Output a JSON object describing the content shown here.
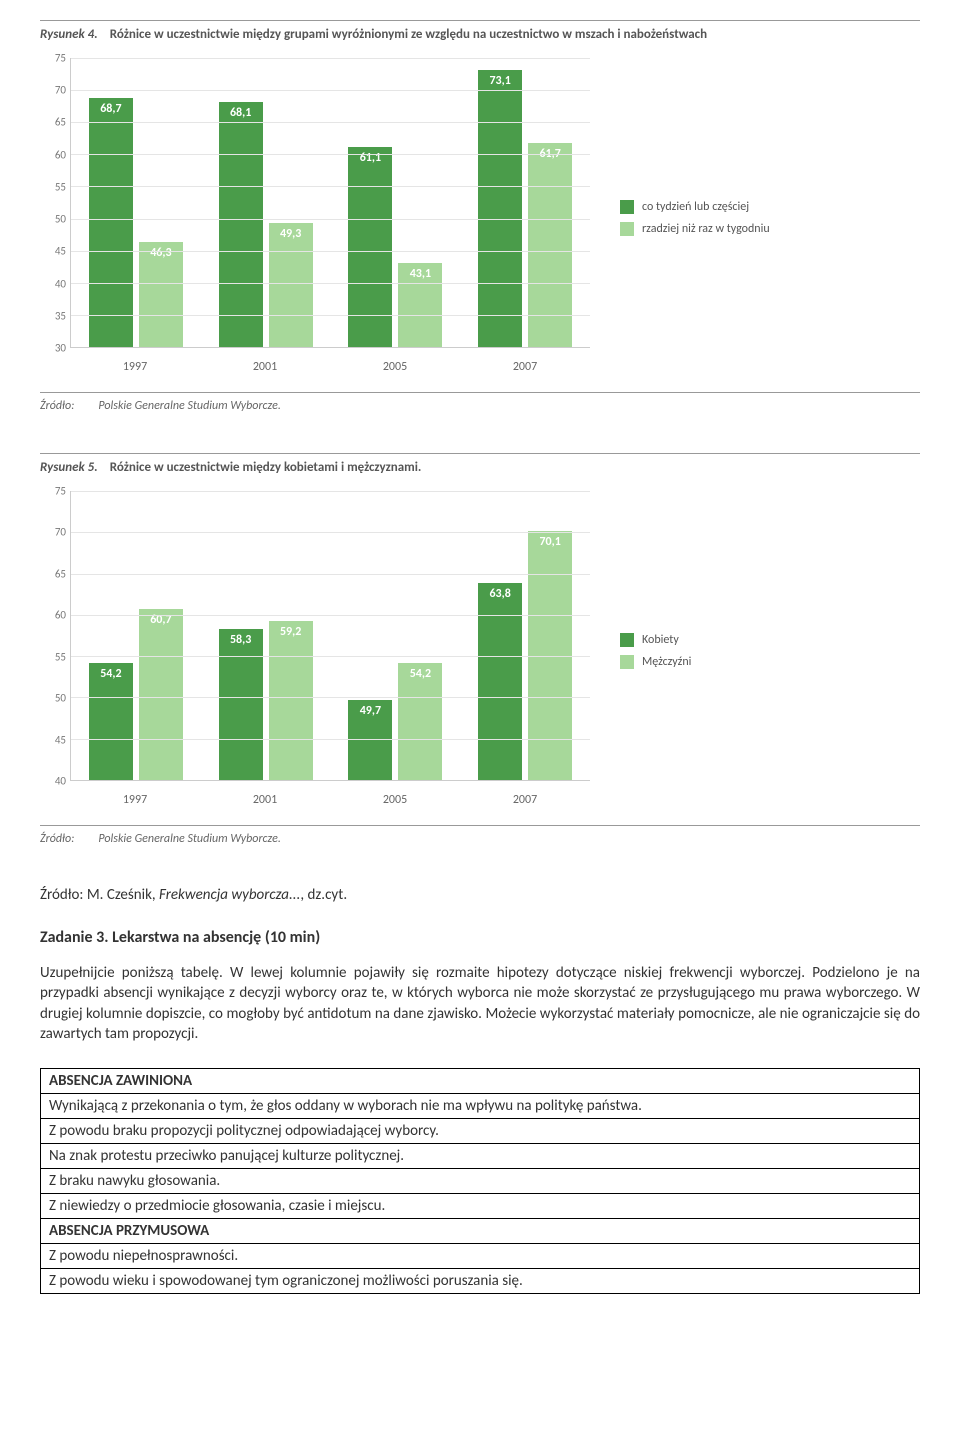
{
  "colors": {
    "dark_green": "#4a9c4a",
    "light_green": "#a7d89a",
    "grid": "#e5e5e5",
    "axis": "#cccccc"
  },
  "chart1": {
    "fig_label": "Rysunek 4.",
    "title": "Różnice w uczestnictwie między grupami wyróżnionymi ze względu na uczestnictwo w mszach i nabożeństwach",
    "y_min": 30,
    "y_max": 75,
    "y_step": 5,
    "categories": [
      "1997",
      "2001",
      "2005",
      "2007"
    ],
    "series": [
      {
        "name": "co tydzień lub częściej",
        "color_key": "dark_green",
        "values": [
          "68,7",
          "68,1",
          "61,1",
          "73,1"
        ],
        "num": [
          68.7,
          68.1,
          61.1,
          73.1
        ]
      },
      {
        "name": "rzadziej niż raz w tygodniu",
        "color_key": "light_green",
        "values": [
          "46,3",
          "49,3",
          "43,1",
          "61,7"
        ],
        "num": [
          46.3,
          49.3,
          43.1,
          61.7
        ]
      }
    ],
    "source_label": "Źródło:",
    "source_text": "Polskie Generalne Studium Wyborcze."
  },
  "chart2": {
    "fig_label": "Rysunek 5.",
    "title": "Różnice w uczestnictwie między kobietami i mężczyznami.",
    "y_min": 40,
    "y_max": 75,
    "y_step": 5,
    "categories": [
      "1997",
      "2001",
      "2005",
      "2007"
    ],
    "series": [
      {
        "name": "Kobiety",
        "color_key": "dark_green",
        "values": [
          "54,2",
          "58,3",
          "49,7",
          "63,8"
        ],
        "num": [
          54.2,
          58.3,
          49.7,
          63.8
        ]
      },
      {
        "name": "Mężczyźni",
        "color_key": "light_green",
        "values": [
          "60,7",
          "59,2",
          "54,2",
          "70,1"
        ],
        "num": [
          60.7,
          59.2,
          54.2,
          70.1
        ]
      }
    ],
    "source_label": "Źródło:",
    "source_text": "Polskie Generalne Studium Wyborcze."
  },
  "citation": {
    "prefix": "Źródło: M. Cześnik, ",
    "work": "Frekwencja wyborcza...",
    "suffix": ", dz.cyt."
  },
  "task": {
    "heading": "Zadanie 3. Lekarstwa na absencję (10 min)",
    "body": "Uzupełnijcie poniższą tabelę. W lewej kolumnie pojawiły się rozmaite hipotezy dotyczące niskiej frekwencji wyborczej. Podzielono je na przypadki absencji wynikające z decyzji wyborcy oraz te, w których wyborca nie może skorzystać ze przysługującego mu prawa wyborczego. W drugiej kolumnie dopiszcie, co mogłoby być antidotum na dane zjawisko. Możecie wykorzystać materiały pomocnicze, ale nie ograniczajcie się do zawartych tam propozycji."
  },
  "table": {
    "rows": [
      {
        "header": true,
        "text": "ABSENCJA ZAWINIONA"
      },
      {
        "header": false,
        "text": "Wynikającą z przekonania o tym, że głos oddany w wyborach nie ma wpływu na politykę państwa."
      },
      {
        "header": false,
        "text": "Z powodu braku propozycji politycznej odpowiadającej wyborcy."
      },
      {
        "header": false,
        "text": "Na znak protestu przeciwko panującej kulturze politycznej."
      },
      {
        "header": false,
        "text": "Z braku nawyku głosowania."
      },
      {
        "header": false,
        "text": "Z niewiedzy o przedmiocie głosowania, czasie i miejscu."
      },
      {
        "header": true,
        "text": "ABSENCJA PRZYMUSOWA"
      },
      {
        "header": false,
        "text": "Z powodu niepełnosprawności."
      },
      {
        "header": false,
        "text": "Z powodu wieku i spowodowanej tym ograniczonej możliwości poruszania się."
      }
    ]
  }
}
